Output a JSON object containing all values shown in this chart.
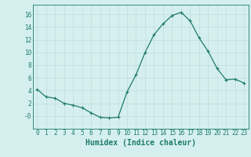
{
  "x": [
    0,
    1,
    2,
    3,
    4,
    5,
    6,
    7,
    8,
    9,
    10,
    11,
    12,
    13,
    14,
    15,
    16,
    17,
    18,
    19,
    20,
    21,
    22,
    23
  ],
  "y": [
    4.2,
    3.0,
    2.8,
    2.0,
    1.7,
    1.3,
    0.5,
    -0.2,
    -0.3,
    -0.2,
    3.8,
    6.5,
    10.0,
    12.8,
    14.5,
    15.8,
    16.3,
    15.0,
    12.3,
    10.2,
    7.5,
    5.7,
    5.8,
    5.2
  ],
  "line_color": "#1e7b6b",
  "marker": "+",
  "marker_size": 3,
  "marker_linewidth": 0.8,
  "linewidth": 0.9,
  "xlabel": "Humidex (Indice chaleur)",
  "xlabel_fontsize": 7,
  "xlabel_color": "#1e7b6b",
  "ylim": [
    -2,
    17.5
  ],
  "xlim": [
    -0.5,
    23.5
  ],
  "yticks": [
    0,
    2,
    4,
    6,
    8,
    10,
    12,
    14,
    16
  ],
  "ytick_labels": [
    "-0",
    "2",
    "4",
    "6",
    "8",
    "10",
    "12",
    "14",
    "16"
  ],
  "xticks": [
    0,
    1,
    2,
    3,
    4,
    5,
    6,
    7,
    8,
    9,
    10,
    11,
    12,
    13,
    14,
    15,
    16,
    17,
    18,
    19,
    20,
    21,
    22,
    23
  ],
  "background_color": "#d5efef",
  "grid_color": "#c0dcdc",
  "tick_fontsize": 5.5,
  "tick_color": "#1e7b6b"
}
